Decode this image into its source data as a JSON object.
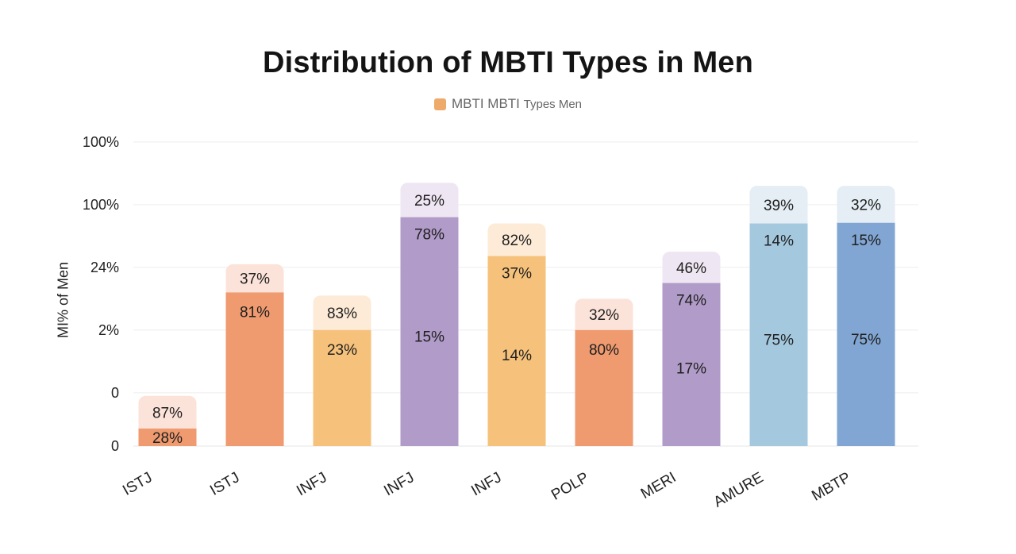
{
  "chart_data": {
    "type": "bar",
    "title": "Distribution of MBTI Types in Men",
    "ylabel": "MI% of Men",
    "xlabel": "",
    "legend": {
      "placement": "top-center",
      "label_main": "MBTI MBTI",
      "label_small": "Types Men",
      "color": "#EDAA6A"
    },
    "grid": true,
    "y_tick_labels": [
      "0",
      "0",
      "2%",
      "24%",
      "100%",
      "100%"
    ],
    "categories": [
      "ISTJ",
      "ISTJ",
      "INFJ",
      "INFJ",
      "INFJ",
      "POLP",
      "MERI",
      "AMURE",
      "MBTP"
    ],
    "bars": [
      {
        "category": "ISTJ",
        "level": 0.28,
        "total": 0.8,
        "labels": [
          "87%",
          "28%"
        ],
        "main": "#EF9A6F",
        "cap": "#FCE3DA"
      },
      {
        "category": "ISTJ",
        "level": 2.45,
        "total": 2.9,
        "labels": [
          "37%",
          "81%"
        ],
        "main": "#EF9A6F",
        "cap": "#FCE3DA"
      },
      {
        "category": "INFJ",
        "level": 1.85,
        "total": 2.4,
        "labels": [
          "83%",
          "23%"
        ],
        "main": "#F6C27B",
        "cap": "#FDEBD7"
      },
      {
        "category": "INFJ",
        "level": 3.65,
        "total": 4.2,
        "labels": [
          "25%",
          "78%",
          "15%"
        ],
        "main": "#B19BC8",
        "cap": "#EFE6F3"
      },
      {
        "category": "INFJ",
        "level": 3.03,
        "total": 3.55,
        "labels": [
          "82%",
          "37%",
          "14%"
        ],
        "main": "#F6C27B",
        "cap": "#FDEBD7"
      },
      {
        "category": "POLP",
        "level": 1.85,
        "total": 2.35,
        "labels": [
          "32%",
          "80%"
        ],
        "main": "#EF9A6F",
        "cap": "#FCE3DA"
      },
      {
        "category": "MERI",
        "level": 2.6,
        "total": 3.1,
        "labels": [
          "46%",
          "74%",
          "17%"
        ],
        "main": "#B19BC8",
        "cap": "#EFE6F3"
      },
      {
        "category": "AMURE",
        "level": 3.55,
        "total": 4.15,
        "labels": [
          "39%",
          "14%",
          "75%"
        ],
        "main": "#A4C9DF",
        "cap": "#E4EEF4"
      },
      {
        "category": "MBTP",
        "level": 3.56,
        "total": 4.15,
        "labels": [
          "32%",
          "15%",
          "75%"
        ],
        "main": "#82A6D3",
        "cap": "#E4EEF4"
      }
    ]
  }
}
